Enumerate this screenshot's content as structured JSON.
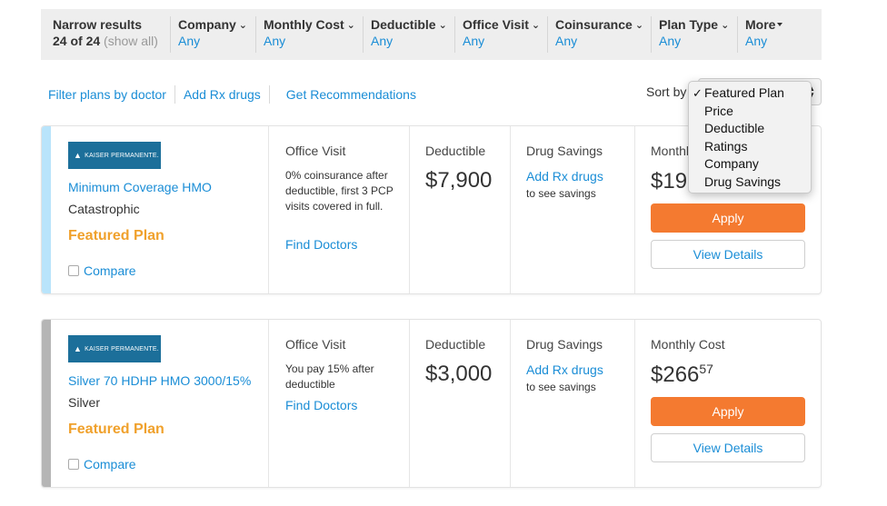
{
  "filters": {
    "narrow": {
      "label": "Narrow results",
      "count": "24 of 24",
      "show_all": "(show all)"
    },
    "items": [
      {
        "label": "Company",
        "value": "Any"
      },
      {
        "label": "Monthly Cost",
        "value": "Any"
      },
      {
        "label": "Deductible",
        "value": "Any"
      },
      {
        "label": "Office Visit",
        "value": "Any"
      },
      {
        "label": "Coinsurance",
        "value": "Any"
      },
      {
        "label": "Plan Type",
        "value": "Any"
      }
    ],
    "more": {
      "label": "More"
    }
  },
  "links": {
    "filter_by_doctor": "Filter plans by doctor",
    "add_rx": "Add Rx drugs",
    "recommendations": "Get Recommendations"
  },
  "sort": {
    "label": "Sort by",
    "selected": "Featured Plan",
    "options": [
      "Featured Plan",
      "Price",
      "Deductible",
      "Ratings",
      "Company",
      "Drug Savings"
    ]
  },
  "plans": [
    {
      "accent_color": "#b9e4fb",
      "carrier_logo_text": "KAISER PERMANENTE.",
      "name": "Minimum Coverage HMO",
      "metal": "Catastrophic",
      "featured": "Featured Plan",
      "compare": "Compare",
      "office_visit": {
        "title": "Office Visit",
        "text": "0% coinsurance after deductible, first 3 PCP visits covered in full.",
        "link": "Find Doctors"
      },
      "deductible": {
        "title": "Deductible",
        "value": "$7,900"
      },
      "drug_savings": {
        "title": "Drug Savings",
        "link": "Add Rx drugs",
        "text": "to see savings"
      },
      "monthly": {
        "title": "Monthl",
        "dollars": "$19",
        "cents": ""
      },
      "apply": "Apply",
      "details": "View Details"
    },
    {
      "accent_color": "#b5b5b5",
      "carrier_logo_text": "KAISER PERMANENTE.",
      "name": "Silver 70 HDHP HMO 3000/15%",
      "metal": "Silver",
      "featured": "Featured Plan",
      "compare": "Compare",
      "office_visit": {
        "title": "Office Visit",
        "text": "You pay 15% after deductible",
        "link": "Find Doctors"
      },
      "deductible": {
        "title": "Deductible",
        "value": "$3,000"
      },
      "drug_savings": {
        "title": "Drug Savings",
        "link": "Add Rx drugs",
        "text": "to see savings"
      },
      "monthly": {
        "title": "Monthly Cost",
        "dollars": "$266",
        "cents": "57"
      },
      "apply": "Apply",
      "details": "View Details"
    }
  ]
}
